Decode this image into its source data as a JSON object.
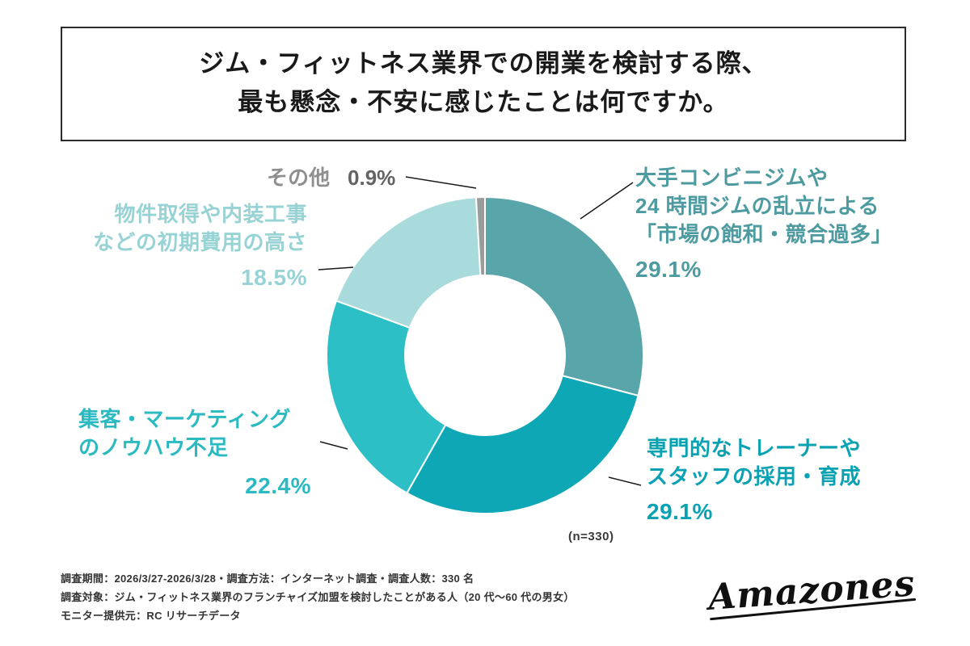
{
  "title": {
    "line1": "ジム・フィットネス業界での開業を検討する際、",
    "line2": "最も懸念・不安に感じたことは何ですか。"
  },
  "chart_data": {
    "type": "pie",
    "subtype": "donut",
    "direction": "clockwise",
    "start_angle_deg": 0,
    "n_label": "(n=330)",
    "total_pct": 100,
    "segments": [
      {
        "name": "market-saturation",
        "label_lines": [
          "大手コンビニジムや",
          "24 時間ジムの乱立による",
          "「市場の飽和・競合過多」"
        ],
        "value": 29.1,
        "pct": "29.1%",
        "color": "#58a5aa",
        "label_color": "#4d9ba0"
      },
      {
        "name": "trainer-recruitment",
        "label_lines": [
          "専門的なトレーナーや",
          "スタッフの採用・育成"
        ],
        "value": 29.1,
        "pct": "29.1%",
        "color": "#0ea7b5",
        "label_color": "#0aa2b2"
      },
      {
        "name": "marketing-knowhow",
        "label_lines": [
          "集客・マーケティング",
          "のノウハウ不足"
        ],
        "value": 22.4,
        "pct": "22.4%",
        "color": "#2cc0c6",
        "label_color": "#2bbac2"
      },
      {
        "name": "initial-cost",
        "label_lines": [
          "物件取得や内装工事",
          "などの初期費用の高さ"
        ],
        "value": 18.5,
        "pct": "18.5%",
        "color": "#a9dbdc",
        "label_color": "#97d2d4"
      },
      {
        "name": "other",
        "label_lines": [
          "その他"
        ],
        "value": 0.9,
        "pct": "0.9%",
        "color": "#9b9b9b",
        "label_color": "#8f8f8f",
        "pct_color": "#636363"
      }
    ]
  },
  "footer": {
    "line1": "調査期間：2026/3/27-2026/3/28・調査方法：インターネット調査・調査人数：330 名",
    "line2": "調査対象：ジム・フィットネス業界のフランチャイズ加盟を検討したことがある人（20 代〜60 代の男女）",
    "line3": "モニター提供元：RC リサーチデータ"
  },
  "logo": {
    "text": "Amazones"
  }
}
